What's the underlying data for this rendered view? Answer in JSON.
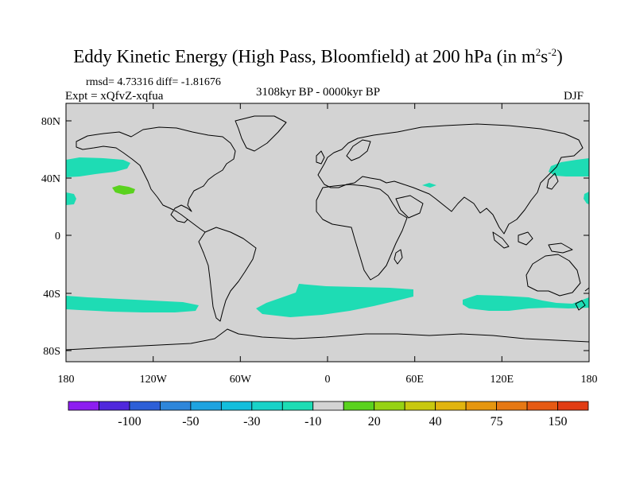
{
  "title": {
    "text": "Eddy Kinetic Energy (High Pass, Bloomfield) at 200 hPa (in m",
    "unit_sup1": "2",
    "unit_mid": "s",
    "unit_sup2": "-2",
    "unit_close": ")"
  },
  "stats": "rmsd= 4.73316 diff= -1.81676",
  "experiment": "Expt = xQfvZ-xqfua",
  "period": "3108kyr BP - 0000kyr BP",
  "season": "DJF",
  "map": {
    "lat_labels": [
      "80N",
      "40N",
      "0",
      "40S",
      "80S"
    ],
    "lon_labels": [
      "180",
      "120W",
      "60W",
      "0",
      "60E",
      "120E",
      "180"
    ],
    "background_color": "#d3d3d3"
  },
  "colorbar": {
    "labels": [
      "-100",
      "-50",
      "-30",
      "-10",
      "20",
      "40",
      "75",
      "150"
    ],
    "colors": [
      "#8d1ef0",
      "#5028dc",
      "#2d5fd7",
      "#2e86da",
      "#1fa3e0",
      "#14bedc",
      "#19d2c8",
      "#1edcb4",
      "#d3d3d3",
      "#5ad21e",
      "#96d214",
      "#c8c80f",
      "#e1b40f",
      "#e6960f",
      "#e67814",
      "#e65a14",
      "#e13c14"
    ]
  },
  "legend_colors": {
    "band_minus10": "#1edcb4",
    "band_plus20": "#5ad21e"
  }
}
